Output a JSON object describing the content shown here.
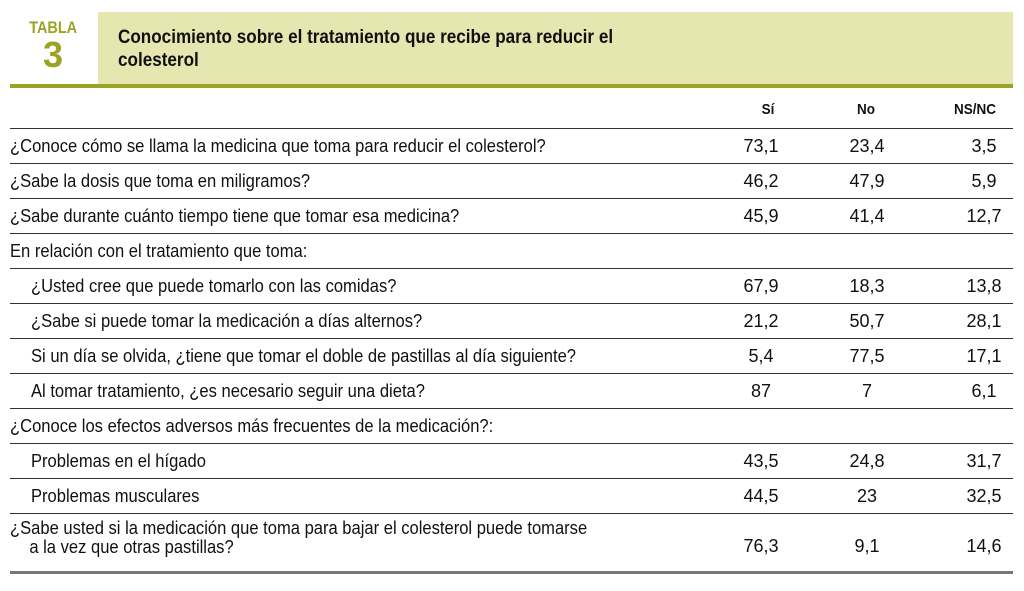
{
  "header": {
    "tag_label": "TABLA",
    "tag_number": "3",
    "title": "Conocimiento sobre el tratamiento que recibe para reducir el colesterol"
  },
  "columns": [
    "Sí",
    "No",
    "NS/NC"
  ],
  "rows": [
    {
      "q": "¿Conoce cómo se llama la medicina que toma para reducir el colesterol?",
      "v": [
        "73,1",
        "23,4",
        "3,5"
      ]
    },
    {
      "q": "¿Sabe la dosis que toma en miligramos?",
      "v": [
        "46,2",
        "47,9",
        "5,9"
      ]
    },
    {
      "q": "¿Sabe durante cuánto tiempo tiene que tomar esa medicina?",
      "v": [
        "45,9",
        "41,4",
        "12,7"
      ]
    },
    {
      "q": "En relación con el tratamiento que toma:",
      "v": [
        "",
        "",
        ""
      ]
    },
    {
      "q": "¿Usted cree que puede tomarlo con las comidas?",
      "v": [
        "67,9",
        "18,3",
        "13,8"
      ]
    },
    {
      "q": "¿Sabe si puede tomar la medicación a días alternos?",
      "v": [
        "21,2",
        "50,7",
        "28,1"
      ]
    },
    {
      "q": "Si un día se olvida, ¿tiene que tomar el doble de pastillas al día siguiente?",
      "v": [
        "5,4",
        "77,5",
        "17,1"
      ]
    },
    {
      "q": "Al tomar tratamiento, ¿es necesario seguir una dieta?",
      "v": [
        "87",
        "7",
        "6,1"
      ]
    },
    {
      "q": "¿Conoce los efectos adversos más frecuentes de la medicación?:",
      "v": [
        "",
        "",
        ""
      ]
    },
    {
      "q": "Problemas en el hígado",
      "v": [
        "43,5",
        "24,8",
        "31,7"
      ]
    },
    {
      "q": "Problemas musculares",
      "v": [
        "44,5",
        "23",
        "32,5"
      ]
    },
    {
      "q": "¿Sabe usted si la medicación que toma para bajar el colesterol puede tomarse",
      "q2": "a la vez que otras pastillas?",
      "v": [
        "76,3",
        "9,1",
        "14,6"
      ]
    }
  ]
}
